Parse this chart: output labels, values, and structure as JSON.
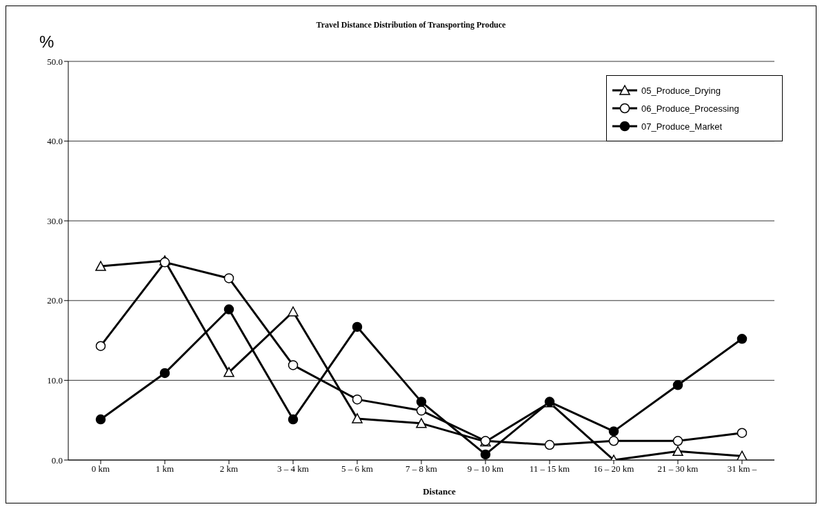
{
  "chart_data": {
    "type": "line",
    "title": "Travel Distance Distribution of Transporting Produce",
    "xlabel": "Distance",
    "ylabel": "%",
    "categories": [
      "0 km",
      "1 km",
      "2 km",
      "3 – 4 km",
      "5 – 6 km",
      "7 – 8 km",
      "9 – 10 km",
      "11 – 15 km",
      "16 – 20 km",
      "21 – 30 km",
      "31 km –"
    ],
    "series": [
      {
        "name": "05_Produce_Drying",
        "color": "#000000",
        "marker": "triangle",
        "values": [
          24.3,
          25.0,
          11.0,
          18.6,
          5.2,
          4.6,
          2.3,
          7.2,
          0,
          1.1,
          0.5
        ]
      },
      {
        "name": "06_Produce_Processing",
        "color": "#000000",
        "marker": "circle",
        "values": [
          14.3,
          24.8,
          22.8,
          11.9,
          7.6,
          6.2,
          2.4,
          1.9,
          2.4,
          2.4,
          3.4
        ]
      },
      {
        "name": "07_Produce_Market",
        "color": "#000000",
        "marker": "circle",
        "values": [
          5.1,
          10.9,
          18.9,
          5.1,
          16.7,
          7.3,
          0.7,
          7.3,
          3.6,
          9.4,
          15.2
        ]
      }
    ],
    "ylim": [
      0,
      50
    ],
    "yticks": [
      {
        "value": 0,
        "label": "0.0"
      },
      {
        "value": 10,
        "label": "10.0"
      },
      {
        "value": 20,
        "label": "20.0"
      },
      {
        "value": 30,
        "label": "30.0"
      },
      {
        "value": 40,
        "label": "40.0"
      },
      {
        "value": 50,
        "label": "50.0"
      }
    ],
    "grid": "y",
    "legend": "top right",
    "line_style": "solid"
  }
}
